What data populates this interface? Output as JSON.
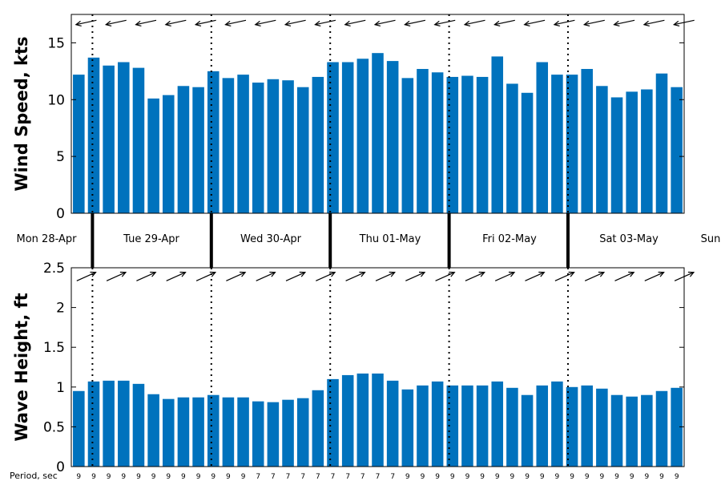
{
  "chart_data": [
    {
      "type": "bar",
      "ylabel": "Wind Speed, kts",
      "ylim": [
        0,
        17.5
      ],
      "yticks": [
        "0",
        "5",
        "10",
        "15"
      ],
      "values": [
        12.2,
        13.7,
        13.0,
        13.3,
        12.8,
        10.1,
        10.4,
        11.2,
        11.1,
        12.5,
        11.9,
        12.2,
        11.5,
        11.8,
        11.7,
        11.1,
        12.0,
        13.3,
        13.3,
        13.6,
        14.1,
        13.4,
        11.9,
        12.7,
        12.4,
        12.0,
        12.1,
        12.0,
        13.8,
        11.4,
        10.6,
        13.3,
        12.2,
        12.2,
        12.7,
        11.2,
        10.2,
        10.7,
        10.9,
        12.3,
        11.1
      ],
      "direction_arrows": "toward west / west-northwest",
      "color": "#0072bd"
    },
    {
      "type": "bar",
      "ylabel": "Wave Height, ft",
      "ylim": [
        0,
        2.5
      ],
      "yticks": [
        "0",
        "0.5",
        "1",
        "1.5",
        "2",
        "2.5"
      ],
      "values": [
        0.95,
        1.07,
        1.08,
        1.08,
        1.04,
        0.91,
        0.85,
        0.87,
        0.87,
        0.9,
        0.87,
        0.87,
        0.82,
        0.81,
        0.84,
        0.86,
        0.96,
        1.1,
        1.15,
        1.17,
        1.17,
        1.08,
        0.97,
        1.02,
        1.07,
        1.02,
        1.02,
        1.02,
        1.07,
        0.99,
        0.9,
        1.02,
        1.07,
        1.0,
        1.02,
        0.98,
        0.9,
        0.88,
        0.9,
        0.95,
        0.99
      ],
      "period_label": "Period, sec",
      "periods": [
        "9",
        "9",
        "9",
        "9",
        "9",
        "9",
        "9",
        "9",
        "9",
        "9",
        "9",
        "9",
        "7",
        "7",
        "7",
        "7",
        "7",
        "7",
        "7",
        "7",
        "7",
        "7",
        "9",
        "9",
        "9",
        "9",
        "9",
        "9",
        "9",
        "9",
        "9",
        "9",
        "9",
        "9",
        "9",
        "9",
        "9",
        "9",
        "9",
        "9",
        "9"
      ],
      "direction_arrows": "toward northeast",
      "color": "#0072bd"
    }
  ],
  "days": [
    "Mon 28-Apr",
    "Tue 29-Apr",
    "Wed 30-Apr",
    "Thu 01-May",
    "Fri 02-May",
    "Sat 03-May",
    "Sun"
  ]
}
